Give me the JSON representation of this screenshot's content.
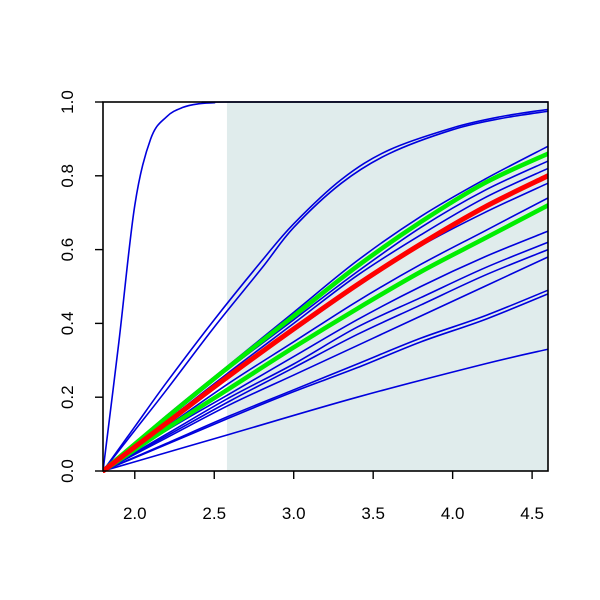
{
  "chart_data": {
    "type": "line",
    "title": "",
    "xlabel": "",
    "ylabel": "",
    "xlim": [
      1.8,
      4.6
    ],
    "ylim": [
      0.0,
      1.0
    ],
    "x_ticks": [
      2.0,
      2.5,
      3.0,
      3.5,
      4.0,
      4.5
    ],
    "x_tick_labels": [
      "2.0",
      "2.5",
      "3.0",
      "3.5",
      "4.0",
      "4.5"
    ],
    "y_ticks": [
      0.0,
      0.2,
      0.4,
      0.6,
      0.8,
      1.0
    ],
    "y_tick_labels": [
      "0.0",
      "0.2",
      "0.4",
      "0.6",
      "0.8",
      "1.0"
    ],
    "grid": false,
    "legend": "none",
    "shaded_region": {
      "x": [
        2.58,
        4.6
      ],
      "y": [
        0.0,
        1.0
      ],
      "color": "#e0ecec"
    },
    "colors": {
      "blue": "#0000dd",
      "red": "#ff0000",
      "green": "#00ee00"
    },
    "series": [
      {
        "color": "blue",
        "width": 1.6,
        "x": [
          1.8,
          1.9,
          2.0,
          2.1,
          2.2,
          2.3,
          2.4,
          2.5,
          2.6,
          4.6
        ],
        "y": [
          0.0,
          0.35,
          0.72,
          0.9,
          0.96,
          0.985,
          0.995,
          0.998,
          1.0,
          1.0
        ]
      },
      {
        "color": "blue",
        "width": 1.6,
        "x": [
          1.8,
          2.0,
          2.2,
          2.5,
          2.8,
          3.0,
          3.3,
          3.6,
          4.0,
          4.3,
          4.6
        ],
        "y": [
          0.0,
          0.12,
          0.24,
          0.41,
          0.57,
          0.67,
          0.79,
          0.87,
          0.93,
          0.96,
          0.98
        ]
      },
      {
        "color": "blue",
        "width": 1.6,
        "x": [
          1.8,
          2.0,
          2.2,
          2.5,
          2.8,
          3.0,
          3.3,
          3.6,
          4.0,
          4.3,
          4.6
        ],
        "y": [
          0.0,
          0.11,
          0.22,
          0.39,
          0.55,
          0.66,
          0.78,
          0.86,
          0.925,
          0.955,
          0.975
        ]
      },
      {
        "color": "blue",
        "width": 1.6,
        "x": [
          1.8,
          2.2,
          2.6,
          3.0,
          3.4,
          3.8,
          4.2,
          4.6
        ],
        "y": [
          0.0,
          0.15,
          0.29,
          0.43,
          0.57,
          0.69,
          0.79,
          0.88
        ]
      },
      {
        "color": "blue",
        "width": 1.6,
        "x": [
          1.8,
          2.2,
          2.6,
          3.0,
          3.4,
          3.8,
          4.2,
          4.6
        ],
        "y": [
          0.0,
          0.14,
          0.28,
          0.41,
          0.54,
          0.66,
          0.76,
          0.84
        ]
      },
      {
        "color": "blue",
        "width": 1.6,
        "x": [
          1.8,
          2.2,
          2.6,
          3.0,
          3.4,
          3.8,
          4.2,
          4.6
        ],
        "y": [
          0.0,
          0.135,
          0.27,
          0.4,
          0.53,
          0.64,
          0.74,
          0.82
        ]
      },
      {
        "color": "blue",
        "width": 1.6,
        "x": [
          1.8,
          2.2,
          2.6,
          3.0,
          3.4,
          3.8,
          4.2,
          4.6
        ],
        "y": [
          0.0,
          0.13,
          0.26,
          0.38,
          0.5,
          0.61,
          0.7,
          0.78
        ]
      },
      {
        "color": "blue",
        "width": 1.6,
        "x": [
          1.8,
          2.2,
          2.6,
          3.0,
          3.4,
          3.8,
          4.2,
          4.6
        ],
        "y": [
          0.0,
          0.12,
          0.24,
          0.35,
          0.46,
          0.56,
          0.65,
          0.74
        ]
      },
      {
        "color": "blue",
        "width": 1.6,
        "x": [
          1.8,
          2.2,
          2.6,
          3.0,
          3.4,
          3.8,
          4.2,
          4.6
        ],
        "y": [
          0.0,
          0.11,
          0.21,
          0.31,
          0.41,
          0.5,
          0.58,
          0.65
        ]
      },
      {
        "color": "blue",
        "width": 1.6,
        "x": [
          1.8,
          2.2,
          2.6,
          3.0,
          3.4,
          3.8,
          4.2,
          4.6
        ],
        "y": [
          0.0,
          0.1,
          0.2,
          0.29,
          0.39,
          0.47,
          0.55,
          0.62
        ]
      },
      {
        "color": "blue",
        "width": 1.6,
        "x": [
          1.8,
          2.2,
          2.6,
          3.0,
          3.4,
          3.8,
          4.2,
          4.6
        ],
        "y": [
          0.0,
          0.095,
          0.19,
          0.28,
          0.37,
          0.45,
          0.53,
          0.6
        ]
      },
      {
        "color": "blue",
        "width": 1.6,
        "x": [
          1.8,
          2.2,
          2.6,
          3.0,
          3.4,
          3.8,
          4.2,
          4.6
        ],
        "y": [
          0.0,
          0.09,
          0.18,
          0.26,
          0.34,
          0.42,
          0.5,
          0.58
        ]
      },
      {
        "color": "blue",
        "width": 1.6,
        "x": [
          1.8,
          2.2,
          2.6,
          3.0,
          3.4,
          3.8,
          4.2,
          4.6
        ],
        "y": [
          0.0,
          0.075,
          0.15,
          0.22,
          0.29,
          0.36,
          0.42,
          0.49
        ]
      },
      {
        "color": "blue",
        "width": 1.6,
        "x": [
          1.8,
          2.2,
          2.6,
          3.0,
          3.4,
          3.8,
          4.2,
          4.6
        ],
        "y": [
          0.0,
          0.072,
          0.145,
          0.215,
          0.28,
          0.35,
          0.41,
          0.48
        ]
      },
      {
        "color": "blue",
        "width": 1.6,
        "x": [
          1.8,
          2.6,
          3.4,
          4.2,
          4.6
        ],
        "y": [
          0.0,
          0.1,
          0.2,
          0.29,
          0.33
        ]
      },
      {
        "color": "green",
        "width": 4.5,
        "x": [
          1.8,
          2.2,
          2.6,
          3.0,
          3.4,
          3.8,
          4.2,
          4.6
        ],
        "y": [
          0.0,
          0.145,
          0.285,
          0.42,
          0.555,
          0.675,
          0.78,
          0.86
        ]
      },
      {
        "color": "green",
        "width": 4.5,
        "x": [
          1.8,
          2.2,
          2.6,
          3.0,
          3.4,
          3.8,
          4.2,
          4.6
        ],
        "y": [
          0.0,
          0.115,
          0.225,
          0.335,
          0.44,
          0.54,
          0.63,
          0.72
        ]
      },
      {
        "color": "red",
        "width": 5,
        "x": [
          1.8,
          2.2,
          2.6,
          3.0,
          3.4,
          3.8,
          4.2,
          4.6
        ],
        "y": [
          0.0,
          0.13,
          0.26,
          0.385,
          0.505,
          0.615,
          0.715,
          0.8
        ]
      }
    ]
  }
}
